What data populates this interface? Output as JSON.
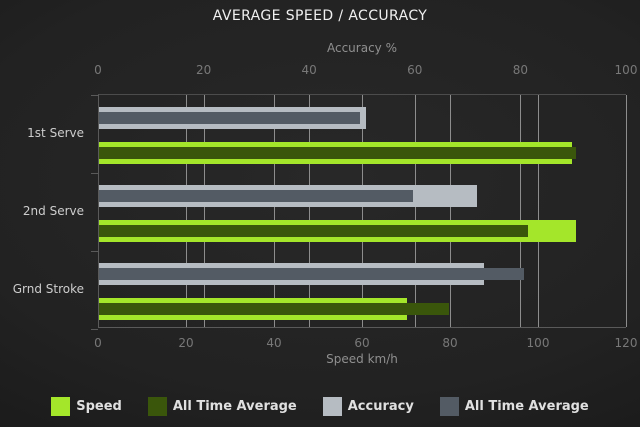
{
  "title": "AVERAGE SPEED / ACCURACY",
  "chart_data": {
    "type": "bar",
    "orientation": "horizontal",
    "background": "#1f1f1f",
    "grid": true,
    "categories": [
      "1st Serve",
      "2nd Serve",
      "Grnd Stroke"
    ],
    "axes": {
      "top": {
        "label": "Accuracy %",
        "min": 0,
        "max": 100,
        "ticks": [
          0,
          20,
          40,
          60,
          80,
          100
        ]
      },
      "bottom": {
        "label": "Speed km/h",
        "min": 0,
        "max": 120,
        "ticks": [
          0,
          20,
          40,
          60,
          80,
          100,
          120
        ]
      }
    },
    "series": [
      {
        "name": "Speed",
        "axis": "bottom",
        "role": "outer",
        "color": "#a4e62a",
        "values": [
          107.5,
          108.5,
          70
        ]
      },
      {
        "name": "All Time Average",
        "axis": "bottom",
        "role": "inner",
        "color": "#3a560b",
        "values": [
          108.5,
          97.5,
          79.5
        ]
      },
      {
        "name": "Accuracy",
        "axis": "top",
        "role": "outer",
        "color": "#b6bcc2",
        "values": [
          50.5,
          71.5,
          73
        ]
      },
      {
        "name": "All Time Average",
        "axis": "top",
        "role": "inner",
        "color": "#535b64",
        "values": [
          49.5,
          59.5,
          80.5
        ]
      }
    ],
    "legend": [
      {
        "label": "Speed",
        "color": "#a4e62a"
      },
      {
        "label": "All Time Average",
        "color": "#3a560b"
      },
      {
        "label": "Accuracy",
        "color": "#b6bcc2"
      },
      {
        "label": "All Time Average",
        "color": "#535b64"
      }
    ],
    "legend_position": "bottom",
    "colors": {
      "gridline": "#8d8d8d",
      "axis_line": "#5a5a5a",
      "title_text": "#f0f0f0",
      "tick_text": "#787878",
      "axis_title_text": "#8f8f8f",
      "category_text": "#cdcdcd",
      "legend_text": "#e0e0e0"
    }
  }
}
